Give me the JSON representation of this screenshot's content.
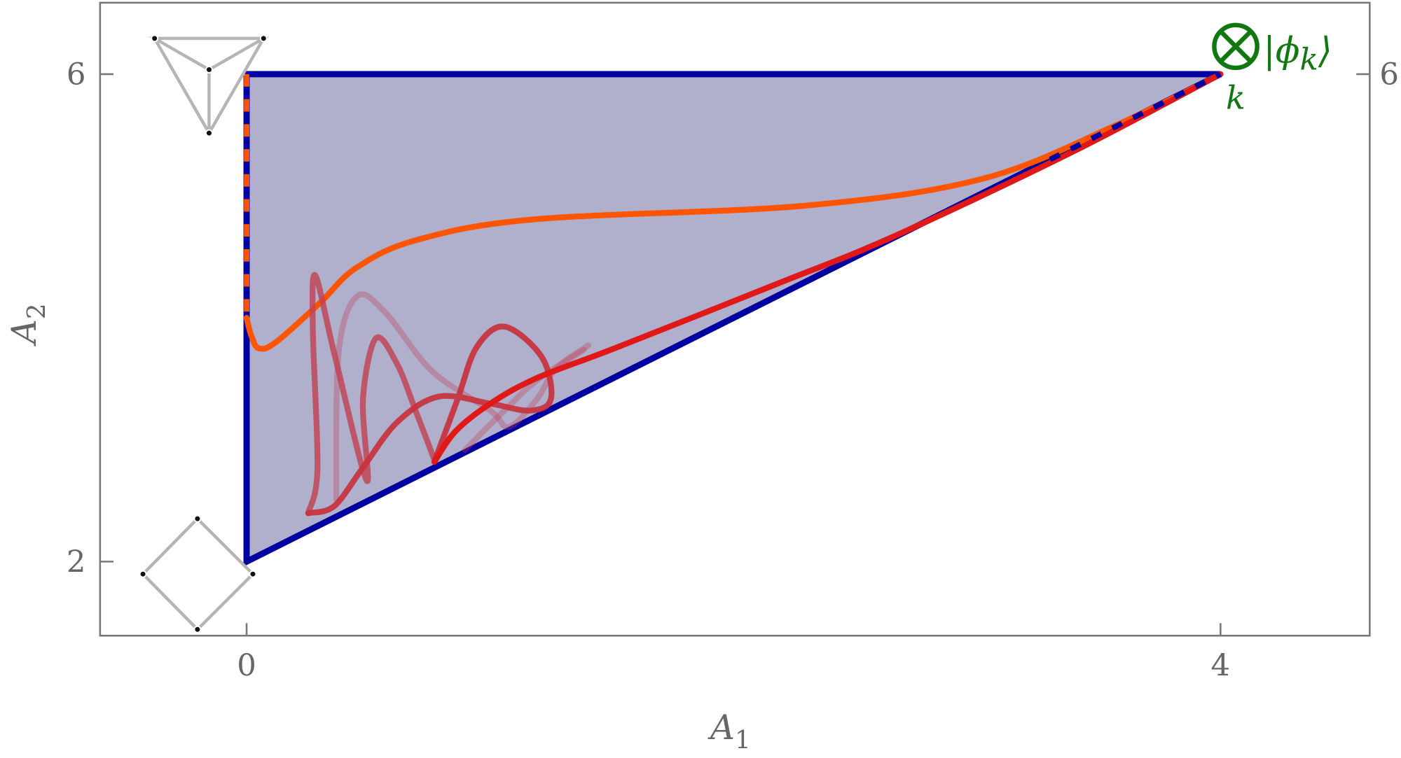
{
  "chart_data": {
    "type": "line",
    "xlabel": "A",
    "xlabel_sub": "1",
    "ylabel": "A",
    "ylabel_sub": "2",
    "xlim": [
      -0.6,
      4.6
    ],
    "ylim": [
      1.4,
      6.6
    ],
    "x_ticks": [
      {
        "value": 0,
        "label": "0"
      },
      {
        "value": 4,
        "label": "4"
      }
    ],
    "y_ticks": [
      {
        "value": 6,
        "label": "6"
      },
      {
        "value": 2,
        "label": "2"
      }
    ],
    "y_ticks_right": [
      {
        "value": 6,
        "label": "6"
      }
    ],
    "grid": false,
    "region": {
      "vertices": [
        [
          0,
          2
        ],
        [
          0,
          6
        ],
        [
          4,
          6
        ]
      ],
      "fill": "#b0b0cc",
      "stroke": "#0000a0"
    },
    "annotation": {
      "symbol": "⊗",
      "ket": "|ϕ",
      "ket_sub": "k",
      "ket_close": "⟩",
      "below": "k",
      "point": [
        4,
        6
      ],
      "color": "#117711"
    },
    "series": [
      {
        "color": "#ff5500",
        "opacity": 1,
        "dashed_segment": [
          [
            0,
            6
          ],
          [
            0,
            4
          ]
        ],
        "points": [
          [
            0,
            4
          ],
          [
            0.02,
            3.85
          ],
          [
            0.05,
            3.75
          ],
          [
            0.12,
            3.8
          ],
          [
            0.3,
            4.12
          ],
          [
            0.45,
            4.41
          ],
          [
            0.7,
            4.64
          ],
          [
            1.19,
            4.81
          ],
          [
            2.29,
            4.92
          ],
          [
            3.02,
            5.14
          ],
          [
            3.57,
            5.58
          ],
          [
            4,
            6
          ]
        ]
      },
      {
        "color": "#c0405a",
        "opacity": 0.35,
        "points": [
          [
            0.368,
            2.512
          ],
          [
            0.378,
            3.717
          ],
          [
            0.454,
            4.177
          ],
          [
            0.57,
            4.043
          ],
          [
            0.761,
            3.564
          ],
          [
            1.001,
            3.239
          ],
          [
            1.078,
            3.105
          ],
          [
            1.193,
            3.335
          ],
          [
            1.27,
            3.583
          ],
          [
            1.404,
            3.775
          ]
        ]
      },
      {
        "color": "#c0405a",
        "opacity": 0.35,
        "points": [
          [
            0.896,
            2.914
          ],
          [
            1.049,
            3.22
          ],
          [
            1.193,
            3.488
          ],
          [
            1.385,
            3.737
          ]
        ]
      },
      {
        "color": "#c04050",
        "opacity": 0.8,
        "points": [
          [
            0.253,
            2.397
          ],
          [
            0.291,
            2.76
          ],
          [
            0.272,
            3.909
          ],
          [
            0.282,
            4.349
          ],
          [
            0.359,
            3.717
          ],
          [
            0.493,
            2.665
          ],
          [
            0.478,
            3.335
          ],
          [
            0.531,
            3.832
          ],
          [
            0.618,
            3.622
          ],
          [
            0.694,
            3.239
          ],
          [
            0.771,
            2.837
          ]
        ]
      },
      {
        "color": "#c8303a",
        "opacity": 0.9,
        "points": [
          [
            0.253,
            2.397
          ],
          [
            0.359,
            2.454
          ],
          [
            0.474,
            2.76
          ],
          [
            0.618,
            3.143
          ],
          [
            0.79,
            3.354
          ],
          [
            1.001,
            3.296
          ],
          [
            1.164,
            3.239
          ],
          [
            1.25,
            3.335
          ],
          [
            1.212,
            3.679
          ],
          [
            1.059,
            3.928
          ],
          [
            0.944,
            3.756
          ],
          [
            0.867,
            3.335
          ],
          [
            0.771,
            2.818
          ]
        ]
      },
      {
        "color": "#e01818",
        "opacity": 1,
        "dashed_overlay_from": 3.3,
        "points": [
          [
            0.771,
            2.818
          ],
          [
            0.857,
            3.067
          ],
          [
            1.001,
            3.296
          ],
          [
            1.193,
            3.507
          ],
          [
            1.519,
            3.756
          ],
          [
            2.18,
            4.28
          ],
          [
            2.66,
            4.67
          ],
          [
            3.39,
            5.36
          ],
          [
            4,
            6
          ]
        ]
      }
    ]
  }
}
